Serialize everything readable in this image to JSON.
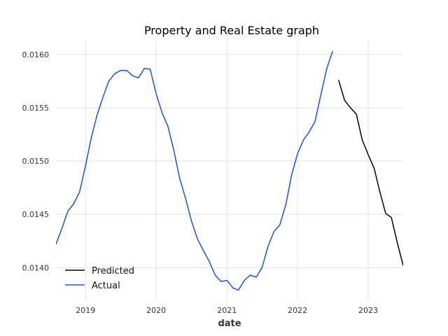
{
  "chart_data": {
    "type": "line",
    "title": "Property and Real Estate graph",
    "xlabel": "date",
    "ylabel": "",
    "xlim": [
      "2018-08-01",
      "2023-07-01"
    ],
    "ylim": [
      0.0137,
      0.01613
    ],
    "x_ticks": [
      "2019",
      "2020",
      "2021",
      "2022",
      "2023"
    ],
    "y_ticks": [
      "0.0140",
      "0.0145",
      "0.0150",
      "0.0155",
      "0.0160"
    ],
    "grid": true,
    "legend_position": "lower-left",
    "series": [
      {
        "name": "Actual",
        "color": "#1f4fe0",
        "x": [
          "2018-08-01",
          "2018-09-01",
          "2018-10-01",
          "2018-11-01",
          "2018-12-01",
          "2019-01-01",
          "2019-02-01",
          "2019-03-01",
          "2019-04-01",
          "2019-05-01",
          "2019-06-01",
          "2019-07-01",
          "2019-08-01",
          "2019-09-01",
          "2019-10-01",
          "2019-11-01",
          "2019-12-01",
          "2020-01-01",
          "2020-02-01",
          "2020-03-01",
          "2020-04-01",
          "2020-05-01",
          "2020-06-01",
          "2020-07-01",
          "2020-08-01",
          "2020-09-01",
          "2020-10-01",
          "2020-11-01",
          "2020-12-01",
          "2021-01-01",
          "2021-02-01",
          "2021-03-01",
          "2021-04-01",
          "2021-05-01",
          "2021-06-01",
          "2021-07-01",
          "2021-08-01",
          "2021-09-01",
          "2021-10-01",
          "2021-11-01",
          "2021-12-01",
          "2022-01-01",
          "2022-02-01",
          "2022-03-01",
          "2022-04-01",
          "2022-05-01",
          "2022-06-01",
          "2022-07-01"
        ],
        "y": [
          0.01422,
          0.01437,
          0.01453,
          0.0146,
          0.01471,
          0.01496,
          0.01523,
          0.01543,
          0.0156,
          0.01575,
          0.01582,
          0.01585,
          0.01585,
          0.0158,
          0.01578,
          0.01587,
          0.01586,
          0.01563,
          0.01545,
          0.01533,
          0.0151,
          0.01484,
          0.01465,
          0.01444,
          0.01427,
          0.01416,
          0.01406,
          0.01393,
          0.01387,
          0.01388,
          0.01381,
          0.01379,
          0.01388,
          0.01393,
          0.01391,
          0.014,
          0.0142,
          0.01434,
          0.0144,
          0.01459,
          0.01487,
          0.01507,
          0.0152,
          0.01527,
          0.01537,
          0.01562,
          0.01587,
          0.01603
        ]
      },
      {
        "name": "Predicted",
        "color": "#000000",
        "x": [
          "2022-08-01",
          "2022-09-01",
          "2022-10-01",
          "2022-11-01",
          "2022-12-01",
          "2023-01-01",
          "2023-02-01",
          "2023-03-01",
          "2023-04-01",
          "2023-05-01",
          "2023-06-01",
          "2023-07-01"
        ],
        "y": [
          0.01576,
          0.01557,
          0.0155,
          0.01544,
          0.0152,
          0.01506,
          0.01493,
          0.01472,
          0.01451,
          0.01447,
          0.01423,
          0.01402
        ]
      }
    ]
  }
}
